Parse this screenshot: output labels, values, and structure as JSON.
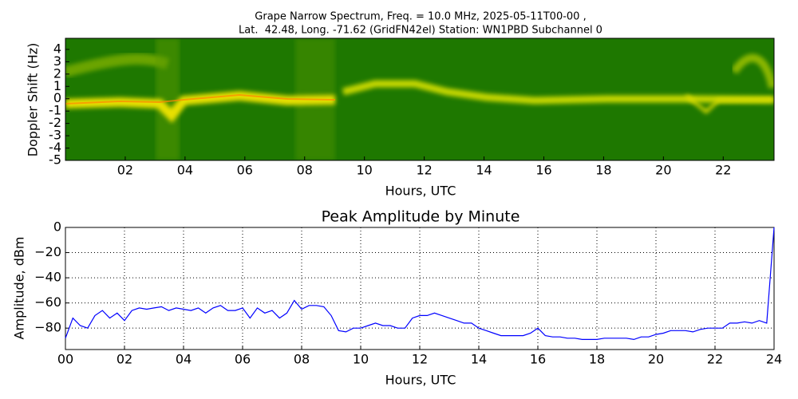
{
  "chart_data": [
    {
      "type": "spectrogram",
      "title": [
        "Grape Narrow Spectrum, Freq. = 10.0 MHz, 2025-05-11T00-00 ,",
        "Lat.  42.48, Long. -71.62 (GridFN42el) Station: WN1PBD Subchannel 0"
      ],
      "xlabel": "Hours, UTC",
      "ylabel": "Doppler Shift (Hz)",
      "xlim": [
        0,
        23.7
      ],
      "ylim": [
        -5,
        4.9
      ],
      "xticks": [
        {
          "value": 2,
          "label": "02"
        },
        {
          "value": 4,
          "label": "04"
        },
        {
          "value": 6,
          "label": "06"
        },
        {
          "value": 8,
          "label": "08"
        },
        {
          "value": 10,
          "label": "10"
        },
        {
          "value": 12,
          "label": "12"
        },
        {
          "value": 14,
          "label": "14"
        },
        {
          "value": 16,
          "label": "16"
        },
        {
          "value": 18,
          "label": "18"
        },
        {
          "value": 20,
          "label": "20"
        },
        {
          "value": 22,
          "label": "22"
        }
      ],
      "yticks": [
        -5,
        -4,
        -3,
        -2,
        -1,
        0,
        1,
        2,
        3,
        4
      ]
    },
    {
      "type": "line",
      "title": "Peak Amplitude by Minute",
      "xlabel": "Hours, UTC",
      "ylabel": "Amplitude, dBm",
      "xlim": [
        0,
        24
      ],
      "ylim": [
        -97,
        0
      ],
      "grid": true,
      "xticks": [
        {
          "value": 0,
          "label": "00"
        },
        {
          "value": 2,
          "label": "02"
        },
        {
          "value": 4,
          "label": "04"
        },
        {
          "value": 6,
          "label": "06"
        },
        {
          "value": 8,
          "label": "08"
        },
        {
          "value": 10,
          "label": "10"
        },
        {
          "value": 12,
          "label": "12"
        },
        {
          "value": 14,
          "label": "14"
        },
        {
          "value": 16,
          "label": "16"
        },
        {
          "value": 18,
          "label": "18"
        },
        {
          "value": 20,
          "label": "20"
        },
        {
          "value": 22,
          "label": "22"
        },
        {
          "value": 24,
          "label": "24"
        }
      ],
      "yticks": [
        0,
        {
          "value": -20,
          "label": "−20"
        },
        {
          "value": -40,
          "label": "−40"
        },
        {
          "value": -60,
          "label": "−60"
        },
        {
          "value": -80,
          "label": "−80"
        }
      ],
      "x": [
        0,
        0.25,
        0.5,
        0.75,
        1,
        1.25,
        1.5,
        1.75,
        2,
        2.25,
        2.5,
        2.75,
        3,
        3.25,
        3.5,
        3.75,
        4,
        4.25,
        4.5,
        4.75,
        5,
        5.25,
        5.5,
        5.75,
        6,
        6.25,
        6.5,
        6.75,
        7,
        7.25,
        7.5,
        7.75,
        8,
        8.25,
        8.5,
        8.75,
        9,
        9.25,
        9.5,
        9.75,
        10,
        10.25,
        10.5,
        10.75,
        11,
        11.25,
        11.5,
        11.75,
        12,
        12.25,
        12.5,
        12.75,
        13,
        13.25,
        13.5,
        13.75,
        14,
        14.25,
        14.5,
        14.75,
        15,
        15.25,
        15.5,
        15.75,
        16,
        16.25,
        16.5,
        16.75,
        17,
        17.25,
        17.5,
        17.75,
        18,
        18.25,
        18.5,
        18.75,
        19,
        19.25,
        19.5,
        19.75,
        20,
        20.25,
        20.5,
        20.75,
        21,
        21.25,
        21.5,
        21.75,
        22,
        22.25,
        22.5,
        22.75,
        23,
        23.25,
        23.5,
        23.75,
        24
      ],
      "series": [
        {
          "color": "#0000ff",
          "values": [
            -88,
            -72,
            -78,
            -80,
            -70,
            -66,
            -72,
            -68,
            -74,
            -66,
            -64,
            -65,
            -64,
            -63,
            -66,
            -64,
            -65,
            -66,
            -64,
            -68,
            -64,
            -62,
            -66,
            -66,
            -64,
            -72,
            -64,
            -68,
            -66,
            -72,
            -68,
            -58,
            -65,
            -62,
            -62,
            -63,
            -70,
            -82,
            -83,
            -80,
            -80,
            -78,
            -76,
            -78,
            -78,
            -80,
            -80,
            -72,
            -70,
            -70,
            -68,
            -70,
            -72,
            -74,
            -76,
            -76,
            -80,
            -82,
            -84,
            -86,
            -86,
            -86,
            -86,
            -84,
            -80,
            -86,
            -87,
            -87,
            -88,
            -88,
            -89,
            -89,
            -89,
            -88,
            -88,
            -88,
            -88,
            -89,
            -87,
            -87,
            -85,
            -84,
            -82,
            -82,
            -82,
            -83,
            -81,
            -80,
            -80,
            -80,
            -76,
            -76,
            -75,
            -76,
            -74,
            -76,
            0
          ]
        }
      ]
    }
  ]
}
